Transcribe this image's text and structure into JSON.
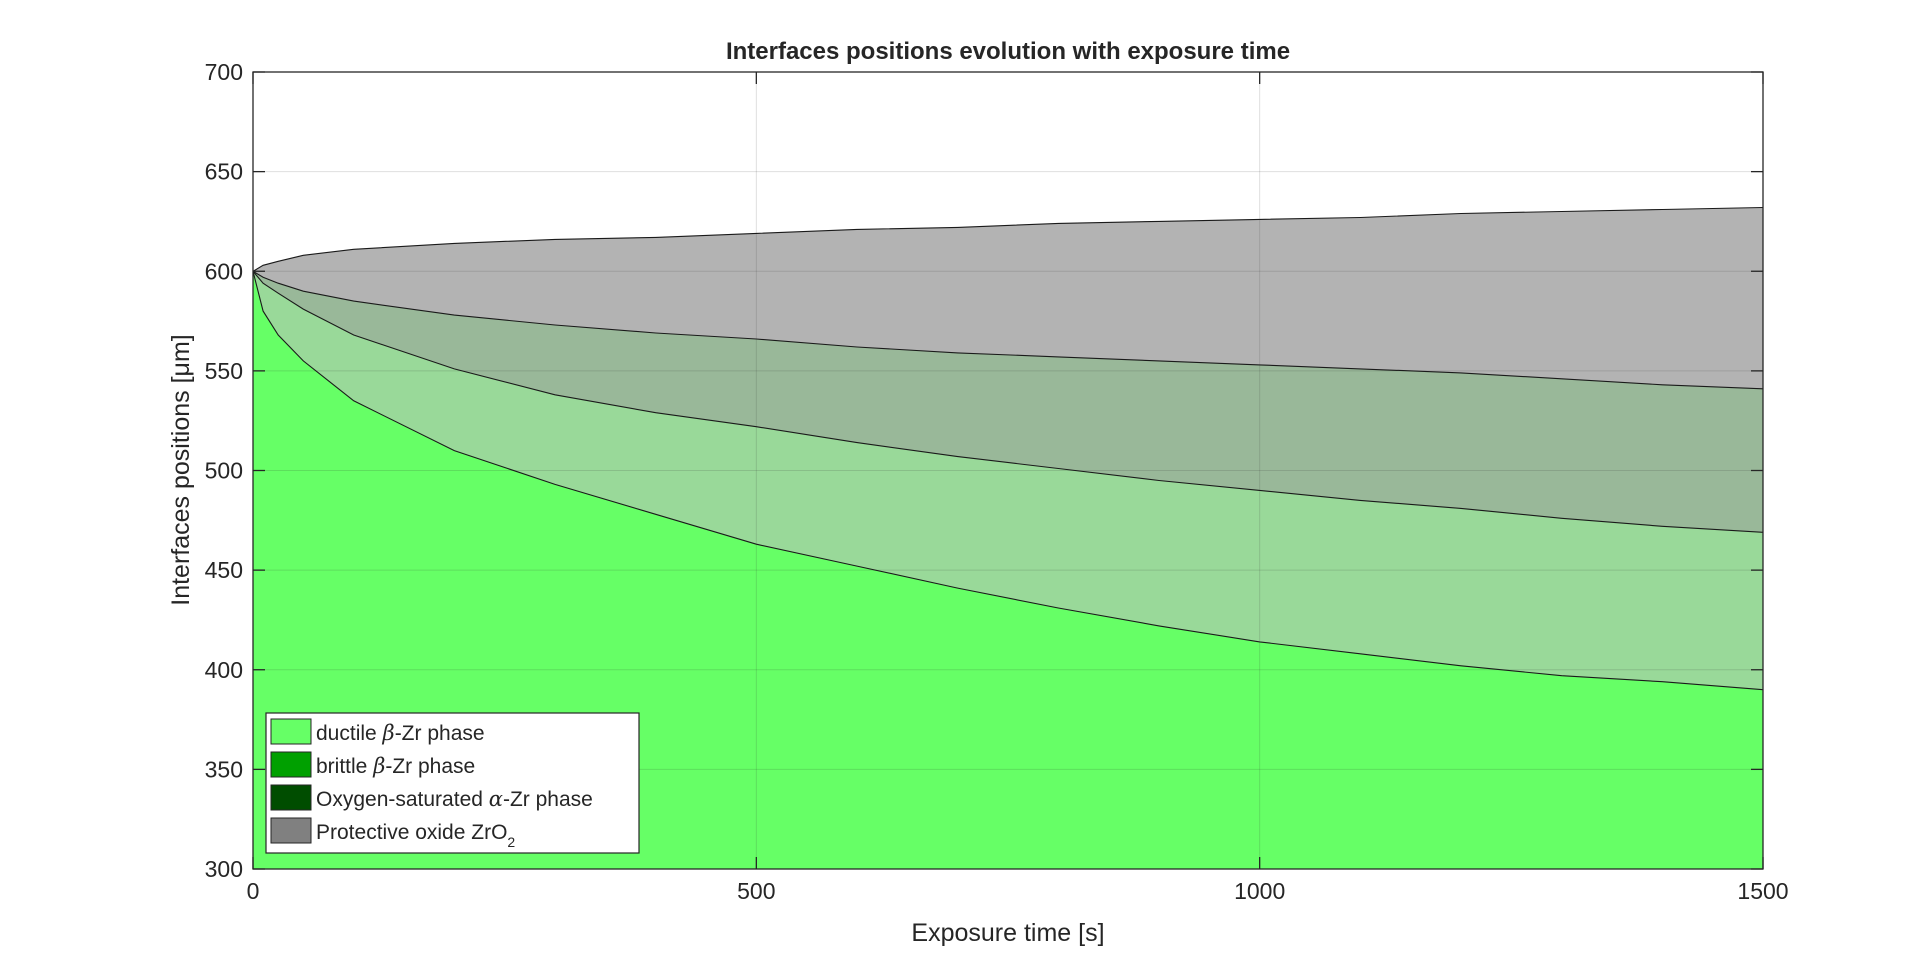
{
  "chart_data": {
    "type": "area",
    "title": "Interfaces positions evolution with exposure time",
    "xlabel": "Exposure time [s]",
    "ylabel": "Interfaces positions [μm]",
    "xlim": [
      0,
      1500
    ],
    "ylim": [
      300,
      700
    ],
    "xticks": [
      0,
      500,
      1000,
      1500
    ],
    "yticks": [
      300,
      350,
      400,
      450,
      500,
      550,
      600,
      650,
      700
    ],
    "grid": true,
    "legend_position": "bottom-left",
    "x": [
      0,
      10,
      25,
      50,
      100,
      200,
      300,
      400,
      500,
      600,
      700,
      800,
      900,
      1000,
      1100,
      1200,
      1300,
      1400,
      1500
    ],
    "series": [
      {
        "name": "ductile β-Zr phase",
        "name_html": "ductile <tspan class=\"legend-greek\">β</tspan>-Zr phase",
        "color": "#66ff66",
        "values": [
          600,
          580,
          568,
          555,
          535,
          510,
          493,
          478,
          463,
          452,
          441,
          431,
          422,
          414,
          408,
          402,
          397,
          394,
          390
        ]
      },
      {
        "name": "brittle β-Zr phase",
        "name_html": "brittle <tspan class=\"legend-greek\">β</tspan>-Zr phase",
        "color": "#00a000",
        "alpha": 0.4,
        "values": [
          600,
          594,
          589,
          581,
          568,
          551,
          538,
          529,
          522,
          514,
          507,
          501,
          495,
          490,
          485,
          481,
          476,
          472,
          469
        ]
      },
      {
        "name": "Oxygen-saturated α-Zr phase",
        "name_html": "Oxygen-saturated <tspan class=\"legend-greek\">α</tspan>-Zr phase",
        "color": "#004d00",
        "alpha": 0.4,
        "values": [
          600,
          597,
          594,
          590,
          585,
          578,
          573,
          569,
          566,
          562,
          559,
          557,
          555,
          553,
          551,
          549,
          546,
          543,
          541
        ]
      },
      {
        "name": "Protective oxide ZrO2",
        "name_html": "Protective oxide ZrO<tspan baseline-shift=\"sub\" font-size=\"14\">2</tspan>",
        "color": "#808080",
        "alpha": 0.6,
        "values": [
          600,
          603,
          605,
          608,
          611,
          614,
          616,
          617,
          619,
          621,
          622,
          624,
          625,
          626,
          627,
          629,
          630,
          631,
          632
        ]
      }
    ]
  }
}
